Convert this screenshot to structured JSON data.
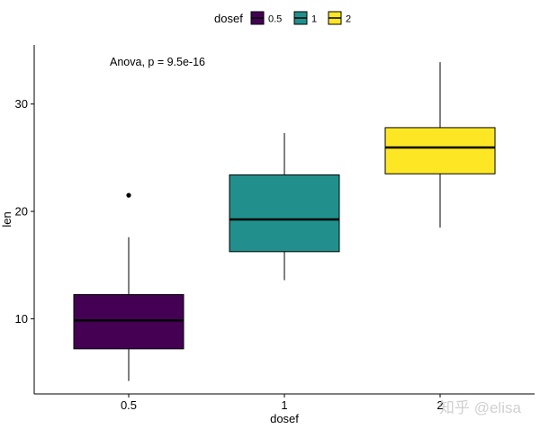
{
  "chart_data": {
    "type": "box",
    "xlabel": "dosef",
    "ylabel": "len",
    "categories": [
      "0.5",
      "1",
      "2"
    ],
    "ylim": [
      3,
      35.5
    ],
    "yticks": [
      10,
      20,
      30
    ],
    "grid": false,
    "legend": {
      "title": "dosef",
      "position": "top",
      "entries": [
        "0.5",
        "1",
        "2"
      ]
    },
    "annotation": "Anova, p = 9.5e-16",
    "boxes": [
      {
        "category": "0.5",
        "min": 4.2,
        "q1": 7.2,
        "median": 9.85,
        "q3": 12.25,
        "max": 17.6,
        "outliers": [
          21.5
        ],
        "color": "#440154"
      },
      {
        "category": "1",
        "min": 13.6,
        "q1": 16.25,
        "median": 19.25,
        "q3": 23.4,
        "max": 27.3,
        "outliers": [],
        "color": "#21908C"
      },
      {
        "category": "2",
        "min": 18.5,
        "q1": 23.5,
        "median": 25.95,
        "q3": 27.8,
        "max": 33.9,
        "outliers": [],
        "color": "#FDE725"
      }
    ]
  },
  "watermark": "知乎 @elisa"
}
